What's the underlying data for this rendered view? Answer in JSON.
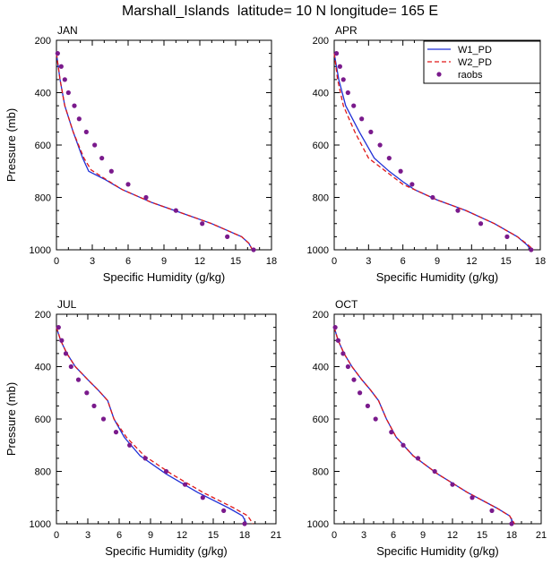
{
  "title": "Marshall_Islands  latitude= 10 N longitude= 165 E",
  "colors": {
    "W1_PD": "#1f2fd6",
    "W2_PD": "#e01818",
    "raobs": "#7a1a8c"
  },
  "chart_data": [
    {
      "type": "line",
      "panel": "JAN",
      "xlabel": "Specific Humidity (g/kg)",
      "ylabel": "Pressure (mb)",
      "xlim": [
        0,
        18
      ],
      "ylim": [
        1000,
        200
      ],
      "xticks": [
        0,
        3,
        6,
        9,
        12,
        15,
        18
      ],
      "yticks": [
        200,
        400,
        600,
        800,
        1000
      ],
      "legend": null,
      "series": [
        {
          "name": "W1_PD",
          "style": "line",
          "points": [
            [
              0.0,
              250
            ],
            [
              0.3,
              350
            ],
            [
              0.7,
              450
            ],
            [
              1.4,
              550
            ],
            [
              2.2,
              650
            ],
            [
              2.7,
              700
            ],
            [
              4.0,
              730
            ],
            [
              5.5,
              770
            ],
            [
              8.0,
              820
            ],
            [
              10.5,
              860
            ],
            [
              13.0,
              900
            ],
            [
              15.5,
              950
            ],
            [
              16.1,
              975
            ],
            [
              16.4,
              1000
            ]
          ]
        },
        {
          "name": "W2_PD",
          "style": "dashed",
          "points": [
            [
              0.0,
              250
            ],
            [
              0.3,
              350
            ],
            [
              0.7,
              450
            ],
            [
              1.4,
              550
            ],
            [
              2.3,
              650
            ],
            [
              2.9,
              695
            ],
            [
              4.1,
              730
            ],
            [
              5.5,
              770
            ],
            [
              8.0,
              820
            ],
            [
              10.5,
              860
            ],
            [
              13.0,
              900
            ],
            [
              15.5,
              950
            ],
            [
              16.1,
              975
            ],
            [
              16.4,
              1000
            ]
          ]
        },
        {
          "name": "raobs",
          "style": "points",
          "points": [
            [
              0.1,
              250
            ],
            [
              0.4,
              300
            ],
            [
              0.7,
              350
            ],
            [
              1.0,
              400
            ],
            [
              1.5,
              450
            ],
            [
              1.9,
              500
            ],
            [
              2.5,
              550
            ],
            [
              3.2,
              600
            ],
            [
              3.8,
              650
            ],
            [
              4.6,
              700
            ],
            [
              6.0,
              750
            ],
            [
              7.5,
              800
            ],
            [
              10.0,
              850
            ],
            [
              12.2,
              900
            ],
            [
              14.3,
              950
            ],
            [
              16.5,
              1000
            ]
          ]
        }
      ]
    },
    {
      "type": "line",
      "panel": "APR",
      "xlabel": "Specific Humidity (g/kg)",
      "ylabel": "Pressure (mb)",
      "xlim": [
        0,
        18
      ],
      "ylim": [
        1000,
        200
      ],
      "xticks": [
        0,
        3,
        6,
        9,
        12,
        15,
        18
      ],
      "yticks": [
        200,
        400,
        600,
        800,
        1000
      ],
      "legend": {
        "position": "top-right",
        "entries": [
          "W1_PD",
          "W2_PD",
          "raobs"
        ]
      },
      "series": [
        {
          "name": "W1_PD",
          "style": "line",
          "points": [
            [
              0.0,
              250
            ],
            [
              0.4,
              350
            ],
            [
              1.0,
              450
            ],
            [
              2.2,
              550
            ],
            [
              3.5,
              650
            ],
            [
              4.8,
              700
            ],
            [
              6.0,
              740
            ],
            [
              7.0,
              770
            ],
            [
              9.0,
              810
            ],
            [
              11.5,
              850
            ],
            [
              14.0,
              900
            ],
            [
              16.0,
              950
            ],
            [
              16.8,
              980
            ],
            [
              17.2,
              1000
            ]
          ]
        },
        {
          "name": "W2_PD",
          "style": "dashed",
          "points": [
            [
              0.0,
              250
            ],
            [
              0.3,
              350
            ],
            [
              0.8,
              450
            ],
            [
              1.8,
              550
            ],
            [
              3.0,
              650
            ],
            [
              4.5,
              700
            ],
            [
              6.0,
              750
            ],
            [
              7.0,
              770
            ],
            [
              9.0,
              810
            ],
            [
              11.5,
              850
            ],
            [
              14.0,
              900
            ],
            [
              16.0,
              950
            ],
            [
              16.9,
              980
            ],
            [
              17.4,
              1000
            ]
          ]
        },
        {
          "name": "raobs",
          "style": "points",
          "points": [
            [
              0.2,
              250
            ],
            [
              0.5,
              300
            ],
            [
              0.8,
              350
            ],
            [
              1.2,
              400
            ],
            [
              1.7,
              450
            ],
            [
              2.4,
              500
            ],
            [
              3.2,
              550
            ],
            [
              4.0,
              600
            ],
            [
              4.8,
              650
            ],
            [
              5.8,
              700
            ],
            [
              6.8,
              750
            ],
            [
              8.6,
              800
            ],
            [
              10.8,
              850
            ],
            [
              12.8,
              900
            ],
            [
              15.1,
              950
            ],
            [
              17.2,
              1000
            ]
          ]
        }
      ]
    },
    {
      "type": "line",
      "panel": "JUL",
      "xlabel": "Specific Humidity (g/kg)",
      "ylabel": "Pressure (mb)",
      "xlim": [
        0,
        21
      ],
      "ylim": [
        1000,
        200
      ],
      "xticks": [
        0,
        3,
        6,
        9,
        12,
        15,
        18,
        21
      ],
      "yticks": [
        200,
        400,
        600,
        800,
        1000
      ],
      "legend": null,
      "series": [
        {
          "name": "W1_PD",
          "style": "line",
          "points": [
            [
              0.0,
              250
            ],
            [
              0.4,
              300
            ],
            [
              1.0,
              350
            ],
            [
              1.8,
              400
            ],
            [
              3.0,
              450
            ],
            [
              4.0,
              490
            ],
            [
              4.9,
              530
            ],
            [
              5.5,
              600
            ],
            [
              6.5,
              670
            ],
            [
              8.0,
              740
            ],
            [
              10.5,
              810
            ],
            [
              13.5,
              880
            ],
            [
              16.5,
              940
            ],
            [
              17.8,
              970
            ],
            [
              18.2,
              1000
            ]
          ]
        },
        {
          "name": "W2_PD",
          "style": "dashed",
          "points": [
            [
              0.0,
              250
            ],
            [
              0.4,
              300
            ],
            [
              1.0,
              350
            ],
            [
              1.8,
              400
            ],
            [
              3.0,
              450
            ],
            [
              4.0,
              490
            ],
            [
              4.9,
              530
            ],
            [
              5.5,
              600
            ],
            [
              6.7,
              670
            ],
            [
              8.4,
              740
            ],
            [
              11.0,
              810
            ],
            [
              14.0,
              880
            ],
            [
              17.0,
              940
            ],
            [
              18.3,
              970
            ],
            [
              18.8,
              1000
            ]
          ]
        },
        {
          "name": "raobs",
          "style": "points",
          "points": [
            [
              0.2,
              250
            ],
            [
              0.5,
              300
            ],
            [
              0.9,
              350
            ],
            [
              1.4,
              400
            ],
            [
              2.1,
              450
            ],
            [
              2.9,
              500
            ],
            [
              3.6,
              550
            ],
            [
              4.5,
              600
            ],
            [
              5.7,
              650
            ],
            [
              7.0,
              700
            ],
            [
              8.5,
              750
            ],
            [
              10.5,
              800
            ],
            [
              12.3,
              850
            ],
            [
              14.0,
              900
            ],
            [
              16.0,
              950
            ],
            [
              18.0,
              1000
            ]
          ]
        }
      ]
    },
    {
      "type": "line",
      "panel": "OCT",
      "xlabel": "Specific Humidity (g/kg)",
      "ylabel": "Pressure (mb)",
      "xlim": [
        0,
        21
      ],
      "ylim": [
        1000,
        200
      ],
      "xticks": [
        0,
        3,
        6,
        9,
        12,
        15,
        18,
        21
      ],
      "yticks": [
        200,
        400,
        600,
        800,
        1000
      ],
      "legend": null,
      "series": [
        {
          "name": "W1_PD",
          "style": "line",
          "points": [
            [
              0.0,
              250
            ],
            [
              0.4,
              300
            ],
            [
              1.0,
              350
            ],
            [
              1.8,
              400
            ],
            [
              2.8,
              450
            ],
            [
              3.7,
              490
            ],
            [
              4.5,
              530
            ],
            [
              5.3,
              600
            ],
            [
              6.3,
              670
            ],
            [
              8.0,
              740
            ],
            [
              10.5,
              810
            ],
            [
              13.5,
              880
            ],
            [
              16.5,
              940
            ],
            [
              17.8,
              970
            ],
            [
              18.2,
              1000
            ]
          ]
        },
        {
          "name": "W2_PD",
          "style": "dashed",
          "points": [
            [
              0.0,
              250
            ],
            [
              0.4,
              300
            ],
            [
              1.0,
              350
            ],
            [
              1.8,
              400
            ],
            [
              2.8,
              450
            ],
            [
              3.7,
              490
            ],
            [
              4.5,
              530
            ],
            [
              5.3,
              600
            ],
            [
              6.3,
              670
            ],
            [
              8.0,
              740
            ],
            [
              10.5,
              810
            ],
            [
              13.5,
              880
            ],
            [
              16.5,
              940
            ],
            [
              17.8,
              970
            ],
            [
              18.3,
              1000
            ]
          ]
        },
        {
          "name": "raobs",
          "style": "points",
          "points": [
            [
              0.1,
              250
            ],
            [
              0.4,
              300
            ],
            [
              0.9,
              350
            ],
            [
              1.4,
              400
            ],
            [
              2.0,
              450
            ],
            [
              2.6,
              500
            ],
            [
              3.4,
              550
            ],
            [
              4.2,
              600
            ],
            [
              5.8,
              650
            ],
            [
              7.0,
              700
            ],
            [
              8.5,
              750
            ],
            [
              10.2,
              800
            ],
            [
              12.0,
              850
            ],
            [
              14.0,
              900
            ],
            [
              16.0,
              950
            ],
            [
              18.0,
              1000
            ]
          ]
        }
      ]
    }
  ]
}
